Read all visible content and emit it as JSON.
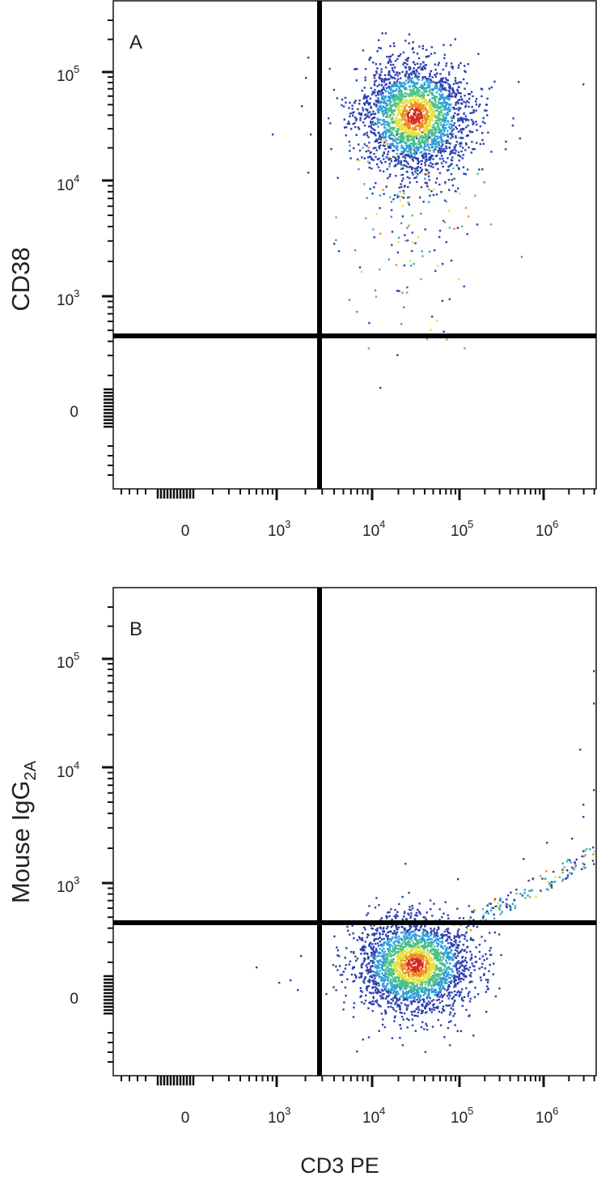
{
  "chart_data": [
    {
      "type": "scatter",
      "panel_label": "A",
      "xlabel": "",
      "ylabel": "CD38",
      "x_ticks": [
        {
          "base": "0",
          "exp": ""
        },
        {
          "base": "10",
          "exp": "3"
        },
        {
          "base": "10",
          "exp": "4"
        },
        {
          "base": "10",
          "exp": "5"
        },
        {
          "base": "10",
          "exp": "6"
        }
      ],
      "y_ticks": [
        {
          "base": "0",
          "exp": ""
        },
        {
          "base": "10",
          "exp": "3"
        },
        {
          "base": "10",
          "exp": "4"
        },
        {
          "base": "10",
          "exp": "5"
        }
      ],
      "x_scale": "biexponential",
      "y_scale": "biexponential",
      "quadrant_gate": {
        "x": 2500,
        "y": 450
      },
      "population": {
        "center_x": 30000,
        "center_y": 40000,
        "density_colormap": [
          "#2c3fb0",
          "#2f9fd6",
          "#4cc08a",
          "#e6e23a",
          "#ef8c25",
          "#d42a1f"
        ]
      },
      "grid": false,
      "legend": "none"
    },
    {
      "type": "scatter",
      "panel_label": "B",
      "xlabel": "CD3 PE",
      "ylabel": "Mouse IgG",
      "ylabel_sub": "2A",
      "x_ticks": [
        {
          "base": "0",
          "exp": ""
        },
        {
          "base": "10",
          "exp": "3"
        },
        {
          "base": "10",
          "exp": "4"
        },
        {
          "base": "10",
          "exp": "5"
        },
        {
          "base": "10",
          "exp": "6"
        }
      ],
      "y_ticks": [
        {
          "base": "0",
          "exp": ""
        },
        {
          "base": "10",
          "exp": "3"
        },
        {
          "base": "10",
          "exp": "4"
        },
        {
          "base": "10",
          "exp": "5"
        }
      ],
      "x_scale": "biexponential",
      "y_scale": "biexponential",
      "quadrant_gate": {
        "x": 2500,
        "y": 450
      },
      "population": {
        "center_x": 30000,
        "center_y": 120,
        "density_colormap": [
          "#2c3fb0",
          "#2f9fd6",
          "#4cc08a",
          "#e6e23a",
          "#ef8c25",
          "#d42a1f"
        ]
      },
      "grid": false,
      "legend": "none"
    }
  ]
}
